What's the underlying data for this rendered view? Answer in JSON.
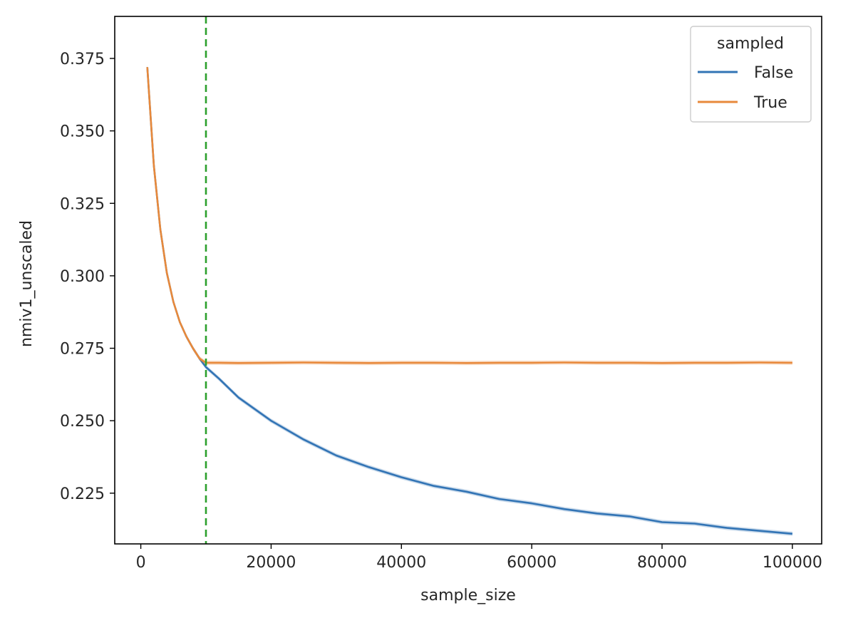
{
  "chart_data": {
    "type": "line",
    "title": "",
    "xlabel": "sample_size",
    "ylabel": "nmiv1_unscaled",
    "xlim": [
      -4000,
      104500
    ],
    "ylim": [
      0.2075,
      0.3895
    ],
    "xticks": [
      0,
      20000,
      40000,
      60000,
      80000,
      100000
    ],
    "xtick_labels": [
      "0",
      "20000",
      "40000",
      "60000",
      "80000",
      "100000"
    ],
    "yticks": [
      0.225,
      0.25,
      0.275,
      0.3,
      0.325,
      0.35,
      0.375
    ],
    "ytick_labels": [
      "0.225",
      "0.250",
      "0.275",
      "0.300",
      "0.325",
      "0.350",
      "0.375"
    ],
    "grid": false,
    "legend": {
      "title": "sampled",
      "placement": "top-right"
    },
    "vline": {
      "x": 10000,
      "color": "#2ca02c",
      "style": "dashed"
    },
    "series": [
      {
        "name": "False",
        "color": "#3274b5",
        "x": [
          1000,
          2000,
          3000,
          4000,
          5000,
          6000,
          7000,
          8000,
          9000,
          10000,
          12000,
          15000,
          20000,
          25000,
          30000,
          35000,
          40000,
          45000,
          50000,
          55000,
          60000,
          65000,
          70000,
          75000,
          80000,
          85000,
          90000,
          95000,
          100000
        ],
        "values": [
          0.372,
          0.338,
          0.316,
          0.301,
          0.291,
          0.284,
          0.279,
          0.275,
          0.2715,
          0.2685,
          0.2645,
          0.258,
          0.25,
          0.2435,
          0.238,
          0.234,
          0.2305,
          0.2275,
          0.2255,
          0.223,
          0.2215,
          0.2195,
          0.218,
          0.217,
          0.215,
          0.2145,
          0.213,
          0.212,
          0.211
        ]
      },
      {
        "name": "True",
        "color": "#e8893b",
        "x": [
          1000,
          2000,
          3000,
          4000,
          5000,
          6000,
          7000,
          8000,
          9000,
          10000,
          12000,
          15000,
          20000,
          25000,
          30000,
          35000,
          40000,
          45000,
          50000,
          55000,
          60000,
          65000,
          70000,
          75000,
          80000,
          85000,
          90000,
          95000,
          100000
        ],
        "values": [
          0.372,
          0.338,
          0.316,
          0.301,
          0.291,
          0.284,
          0.279,
          0.275,
          0.2715,
          0.27,
          0.27,
          0.2699,
          0.27,
          0.2701,
          0.27,
          0.2699,
          0.27,
          0.27,
          0.2699,
          0.27,
          0.27,
          0.2701,
          0.27,
          0.27,
          0.2699,
          0.27,
          0.27,
          0.2701,
          0.27
        ]
      }
    ]
  }
}
